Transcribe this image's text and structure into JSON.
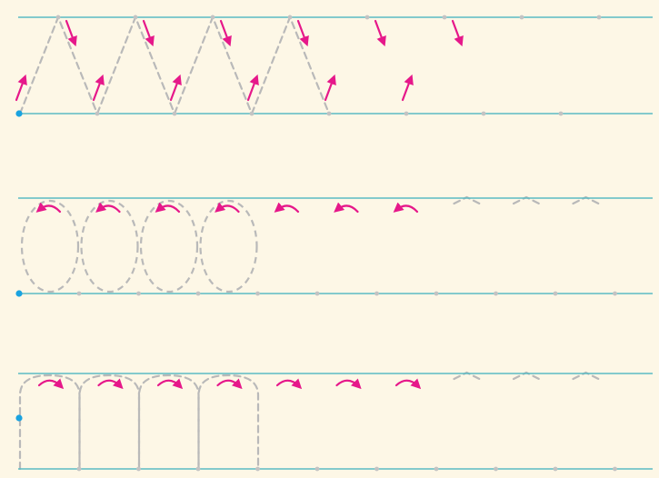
{
  "worksheet": {
    "title": "",
    "colors": {
      "paper": "#fdf7e6",
      "guide_line": "#5bbcc4",
      "start_dot": "#1aa3e0",
      "trace_dash": "#b9b9b9",
      "stroke_arrow": "#e6188a"
    },
    "rows": [
      {
        "name": "zigzag-row",
        "pattern": "zigzag",
        "traced_repeats": 4,
        "arrow_repeats": 6,
        "faint_points": 8,
        "arrow_icon": "direction-arrow-icon"
      },
      {
        "name": "loop-row",
        "pattern": "loops",
        "traced_repeats": 4,
        "arrow_repeats": 7,
        "faint_points": 10,
        "arrow_icon": "curved-arrow-icon"
      },
      {
        "name": "arch-row",
        "pattern": "arches",
        "traced_repeats": 4,
        "arrow_repeats": 7,
        "faint_points": 10,
        "arrow_icon": "curved-arrow-icon"
      }
    ]
  }
}
